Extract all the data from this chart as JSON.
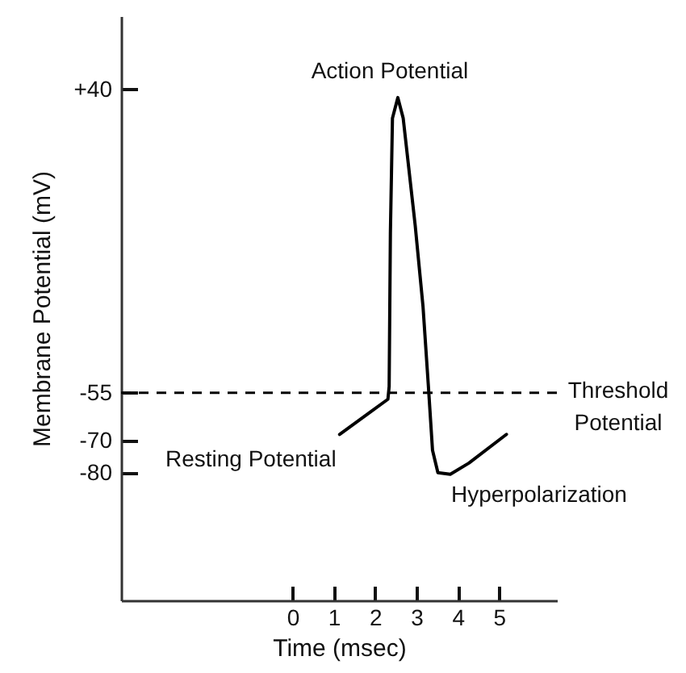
{
  "chart_data": {
    "type": "line",
    "xlabel": "Time (msec)",
    "ylabel": "Membrane Potential (mV)",
    "x": [
      1.14,
      2.31,
      2.34,
      2.37,
      2.42,
      2.55,
      2.68,
      2.97,
      3.16,
      3.29,
      3.39,
      3.52,
      3.82,
      4.27,
      5.18
    ],
    "series": [
      {
        "color": "#000000",
        "values": [
          -68,
          -57,
          -53,
          -5,
          31,
          37.5,
          31,
          -2.5,
          -28,
          -53,
          -73,
          -80,
          -80.5,
          -77,
          -68
        ]
      }
    ],
    "xlim": [
      -4.15,
      6.4
    ],
    "xticks": [
      0,
      1,
      2,
      3,
      4,
      5
    ],
    "ylim": [
      -120,
      63
    ],
    "yticks": [
      {
        "value": 40,
        "label": "+40"
      },
      -55,
      -70,
      -80
    ],
    "ref_lines": [
      {
        "axis": "y",
        "value": -55,
        "label": "Threshold Potential",
        "line_style": "dashed",
        "color": "#000000"
      }
    ],
    "annotations": [
      {
        "text": "Action Potential",
        "x": 2.55,
        "y": 37.5
      },
      {
        "text": "Resting Potential",
        "x": 1.14,
        "y": -68
      },
      {
        "text": "Hyperpolarization",
        "x": 3.82,
        "y": -80.5
      }
    ],
    "line_style": "solid",
    "grid": false
  }
}
